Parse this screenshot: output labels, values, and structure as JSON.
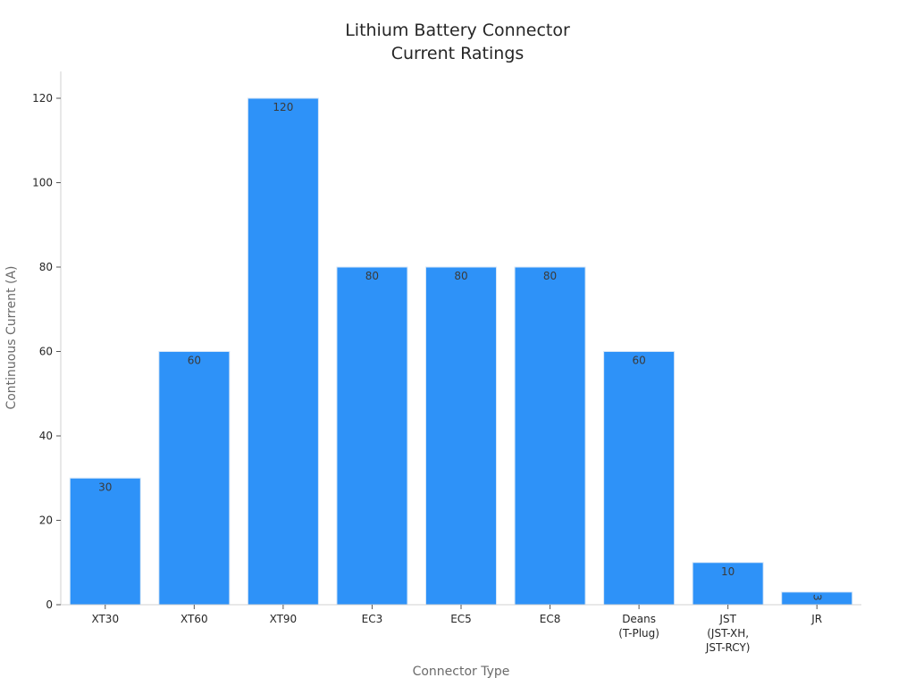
{
  "chart_data": {
    "type": "bar",
    "title_lines": [
      "Lithium Battery Connector",
      "Current Ratings"
    ],
    "xlabel": "Connector Type",
    "ylabel": "Continuous Current (A)",
    "ylim": [
      0,
      126
    ],
    "yticks": [
      "0",
      "20",
      "40",
      "60",
      "80",
      "100",
      "120"
    ],
    "grid": false,
    "bar_color": "#2e92f8",
    "categories": [
      {
        "lines": [
          "XT30"
        ]
      },
      {
        "lines": [
          "XT60"
        ]
      },
      {
        "lines": [
          "XT90"
        ]
      },
      {
        "lines": [
          "EC3"
        ]
      },
      {
        "lines": [
          "EC5"
        ]
      },
      {
        "lines": [
          "EC8"
        ]
      },
      {
        "lines": [
          "Deans",
          "(T-Plug)"
        ]
      },
      {
        "lines": [
          "JST",
          "(JST-XH,",
          "JST-RCY)"
        ]
      },
      {
        "lines": [
          "JR"
        ]
      }
    ],
    "values": [
      30,
      60,
      120,
      80,
      80,
      80,
      60,
      10,
      3
    ],
    "data_labels": [
      "30",
      "60",
      "120",
      "80",
      "80",
      "80",
      "60",
      "10",
      "3"
    ]
  }
}
